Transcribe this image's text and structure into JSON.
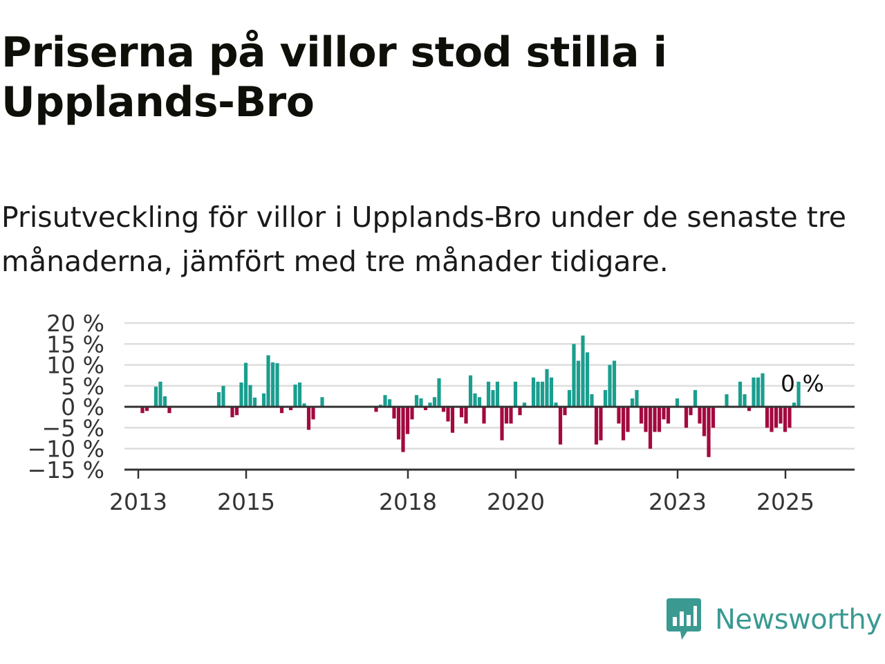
{
  "title": "Priserna på villor stod stilla i Upplands-Bro",
  "subtitle": "Prisutveckling för villor i Upplands-Bro under de senaste tre månaderna, jämfört med tre månader tidigare.",
  "brand": {
    "name": "Newsworthy",
    "color": "#3a9a92"
  },
  "chart_data": {
    "type": "bar",
    "title": "Priserna på villor stod stilla i Upplands-Bro",
    "subtitle": "Prisutveckling för villor i Upplands-Bro under de senaste tre månaderna, jämfört med tre månader tidigare.",
    "xlabel": "",
    "ylabel": "",
    "unit": "%",
    "x_start": "2013-01",
    "x_end": "2026-06",
    "ylim": [
      -15,
      20
    ],
    "yticks": [
      20,
      15,
      10,
      5,
      0,
      -5,
      -10,
      -15
    ],
    "ytick_labels": [
      "20 %",
      "15 %",
      "10 %",
      "5 %",
      "0 %",
      "−5 %",
      "−10 %",
      "−15 %"
    ],
    "xticks": [
      "2013",
      "2015",
      "2018",
      "2020",
      "2023",
      "2025"
    ],
    "grid": true,
    "colors": {
      "positive": "#1a9e8f",
      "negative": "#a3093f",
      "grid": "#dddddd",
      "axis": "#333333"
    },
    "last_value_label": "0 %",
    "series": [
      {
        "values": [
          [
            "2013-05",
            -1.5
          ],
          [
            "2013-06",
            -1
          ],
          [
            "2013-08",
            4.8
          ],
          [
            "2013-09",
            6
          ],
          [
            "2013-10",
            2.5
          ],
          [
            "2013-11",
            -1.5
          ],
          [
            "2014-10",
            3.5
          ],
          [
            "2014-11",
            5
          ],
          [
            "2015-01",
            -2.5
          ],
          [
            "2015-02",
            -2
          ],
          [
            "2015-03",
            5.8
          ],
          [
            "2015-04",
            10.5
          ],
          [
            "2015-05",
            5.2
          ],
          [
            "2015-06",
            2.2
          ],
          [
            "2015-08",
            3.2
          ],
          [
            "2015-09",
            12.3
          ],
          [
            "2015-10",
            10.6
          ],
          [
            "2015-11",
            10.4
          ],
          [
            "2015-12",
            -1.5
          ],
          [
            "2016-02",
            -0.8
          ],
          [
            "2016-03",
            5.3
          ],
          [
            "2016-04",
            5.8
          ],
          [
            "2016-05",
            0.8
          ],
          [
            "2016-06",
            -5.5
          ],
          [
            "2016-07",
            -3
          ],
          [
            "2016-09",
            2.3
          ],
          [
            "2017-09",
            -1.2
          ],
          [
            "2017-10",
            0.5
          ],
          [
            "2017-11",
            2.8
          ],
          [
            "2017-12",
            1.8
          ],
          [
            "2018-01",
            -2.8
          ],
          [
            "2018-02",
            -7.8
          ],
          [
            "2018-03",
            -10.8
          ],
          [
            "2018-04",
            -6.5
          ],
          [
            "2018-05",
            -3
          ],
          [
            "2018-06",
            2.8
          ],
          [
            "2018-07",
            2
          ],
          [
            "2018-08",
            -0.8
          ],
          [
            "2018-09",
            1
          ],
          [
            "2018-10",
            2.3
          ],
          [
            "2018-11",
            6.8
          ],
          [
            "2018-12",
            -1.2
          ],
          [
            "2019-01",
            -3.5
          ],
          [
            "2019-02",
            -6.2
          ],
          [
            "2019-04",
            -2.5
          ],
          [
            "2019-05",
            -4
          ],
          [
            "2019-06",
            7.5
          ],
          [
            "2019-07",
            3.2
          ],
          [
            "2019-08",
            2.3
          ],
          [
            "2019-09",
            -4
          ],
          [
            "2019-10",
            6
          ],
          [
            "2019-11",
            4
          ],
          [
            "2019-12",
            6
          ],
          [
            "2020-01",
            -8
          ],
          [
            "2020-02",
            -4
          ],
          [
            "2020-03",
            -4
          ],
          [
            "2020-04",
            6
          ],
          [
            "2020-05",
            -2
          ],
          [
            "2020-06",
            1
          ],
          [
            "2020-08",
            7
          ],
          [
            "2020-09",
            6
          ],
          [
            "2020-10",
            6
          ],
          [
            "2020-11",
            9
          ],
          [
            "2020-12",
            7
          ],
          [
            "2021-01",
            1
          ],
          [
            "2021-02",
            -9
          ],
          [
            "2021-03",
            -2
          ],
          [
            "2021-04",
            4
          ],
          [
            "2021-05",
            15
          ],
          [
            "2021-06",
            11
          ],
          [
            "2021-07",
            17
          ],
          [
            "2021-08",
            13
          ],
          [
            "2021-09",
            3
          ],
          [
            "2021-10",
            -9
          ],
          [
            "2021-11",
            -8
          ],
          [
            "2021-12",
            4
          ],
          [
            "2022-01",
            10
          ],
          [
            "2022-02",
            11
          ],
          [
            "2022-03",
            -4
          ],
          [
            "2022-04",
            -8
          ],
          [
            "2022-05",
            -6
          ],
          [
            "2022-06",
            2
          ],
          [
            "2022-07",
            4
          ],
          [
            "2022-08",
            -4
          ],
          [
            "2022-09",
            -6
          ],
          [
            "2022-10",
            -10
          ],
          [
            "2022-11",
            -6
          ],
          [
            "2022-12",
            -6
          ],
          [
            "2023-01",
            -3
          ],
          [
            "2023-02",
            -4
          ],
          [
            "2023-04",
            2
          ],
          [
            "2023-06",
            -5
          ],
          [
            "2023-07",
            -2
          ],
          [
            "2023-08",
            4
          ],
          [
            "2023-09",
            -4
          ],
          [
            "2023-10",
            -7
          ],
          [
            "2023-11",
            -12
          ],
          [
            "2023-12",
            -5
          ],
          [
            "2024-03",
            3
          ],
          [
            "2024-06",
            6
          ],
          [
            "2024-07",
            3
          ],
          [
            "2024-08",
            -1
          ],
          [
            "2024-09",
            7
          ],
          [
            "2024-10",
            7
          ],
          [
            "2024-11",
            8
          ],
          [
            "2024-12",
            -5
          ],
          [
            "2025-01",
            -6
          ],
          [
            "2025-02",
            -5
          ],
          [
            "2025-03",
            -4
          ],
          [
            "2025-04",
            -6
          ],
          [
            "2025-05",
            -5
          ],
          [
            "2025-06",
            1
          ],
          [
            "2025-07",
            6
          ]
        ]
      }
    ]
  }
}
